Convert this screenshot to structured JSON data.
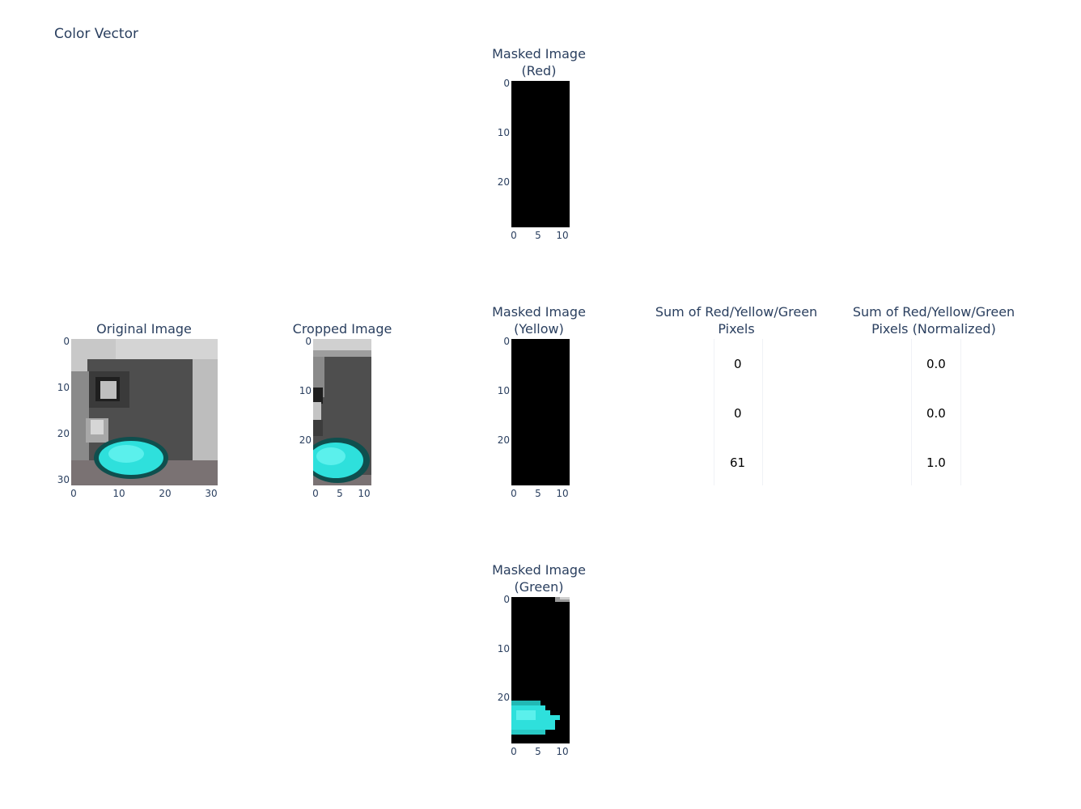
{
  "title": "Color Vector",
  "chart_data": [
    {
      "type": "heatmap",
      "title": "Masked Image (Red)",
      "title_lines": [
        "Masked Image",
        "(Red)"
      ],
      "xticks": [
        "0",
        "5",
        "10"
      ],
      "yticks": [
        "0",
        "10",
        "20"
      ],
      "shape": [
        30,
        12
      ],
      "content": "all black"
    },
    {
      "type": "heatmap",
      "title": "Original Image",
      "title_lines": [
        "Original Image"
      ],
      "xticks": [
        "0",
        "10",
        "20",
        "30"
      ],
      "yticks": [
        "0",
        "10",
        "20",
        "30"
      ],
      "shape": [
        32,
        32
      ],
      "content": "traffic light with green (cyan) lamp lit"
    },
    {
      "type": "heatmap",
      "title": "Cropped Image",
      "title_lines": [
        "Cropped Image"
      ],
      "xticks": [
        "0",
        "5",
        "10"
      ],
      "yticks": [
        "0",
        "10",
        "20"
      ],
      "shape": [
        30,
        12
      ],
      "content": "cropped traffic light, green lamp lit"
    },
    {
      "type": "heatmap",
      "title": "Masked Image (Yellow)",
      "title_lines": [
        "Masked Image",
        "(Yellow)"
      ],
      "xticks": [
        "0",
        "5",
        "10"
      ],
      "yticks": [
        "0",
        "10",
        "20"
      ],
      "shape": [
        30,
        12
      ],
      "content": "all black"
    },
    {
      "type": "table",
      "title": "Sum of Red/Yellow/Green Pixels",
      "title_lines": [
        "Sum of Red/Yellow/Green",
        "Pixels"
      ],
      "values": [
        "0",
        "0",
        "61"
      ]
    },
    {
      "type": "table",
      "title": "Sum of Red/Yellow/Green Pixels (Normalized)",
      "title_lines": [
        "Sum of Red/Yellow/Green",
        "Pixels (Normalized)"
      ],
      "values": [
        "0.0",
        "0.0",
        "1.0"
      ]
    },
    {
      "type": "heatmap",
      "title": "Masked Image (Green)",
      "title_lines": [
        "Masked Image",
        "(Green)"
      ],
      "xticks": [
        "0",
        "5",
        "10"
      ],
      "yticks": [
        "0",
        "10",
        "20"
      ],
      "shape": [
        30,
        12
      ],
      "content": "black with cyan blob at bottom left"
    }
  ],
  "colors": {
    "lamp": "#2ee0dc",
    "mask_bg": "#000000",
    "housing": "#4a4a4a"
  }
}
